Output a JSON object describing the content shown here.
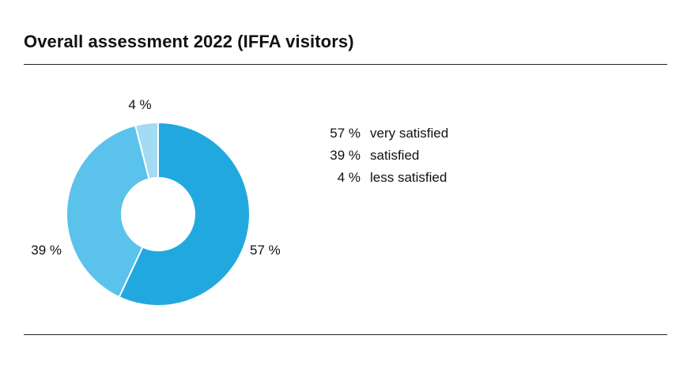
{
  "chart_data": {
    "type": "pie",
    "title": "Overall assessment 2022 (IFFA visitors)",
    "slices": [
      {
        "label": "very satisfied",
        "value": 57,
        "value_label": "57 %",
        "color": "#21a8df"
      },
      {
        "label": "satisfied",
        "value": 39,
        "value_label": "39 %",
        "color": "#5ac2eb"
      },
      {
        "label": "less satisfied",
        "value": 4,
        "value_label": "4 %",
        "color": "#a3dbf3"
      }
    ],
    "legend_placement": "right",
    "donut": true
  }
}
